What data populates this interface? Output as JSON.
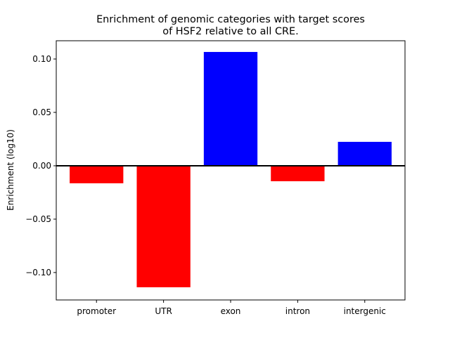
{
  "chart_data": {
    "type": "bar",
    "title": "Enrichment of genomic categories with target scores\nof HSF2 relative to all CRE.",
    "xlabel": "",
    "ylabel": "Enrichment (log10)",
    "categories": [
      "promoter",
      "UTR",
      "exon",
      "intron",
      "intergenic"
    ],
    "values": [
      -0.0164,
      -0.1138,
      0.1066,
      -0.0145,
      0.0224
    ],
    "colors": [
      "#ff0000",
      "#ff0000",
      "#0000ff",
      "#ff0000",
      "#0000ff"
    ],
    "positive_color": "#0000ff",
    "negative_color": "#ff0000",
    "ylim": [
      -0.1257,
      0.1171
    ],
    "yticks": [
      -0.1,
      -0.05,
      0.0,
      0.05,
      0.1
    ],
    "ytick_labels": [
      "−0.10",
      "−0.05",
      "0.00",
      "0.05",
      "0.10"
    ],
    "zero_line": true,
    "grid": false,
    "legend": "none"
  }
}
